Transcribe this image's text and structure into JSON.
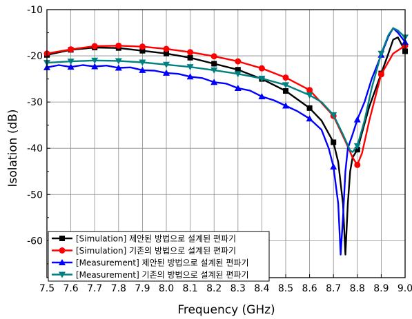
{
  "chart_data": {
    "type": "line",
    "title": "",
    "xlabel": "Frequency (GHz)",
    "ylabel": "Isolation (dB)",
    "xlim": [
      7.5,
      9.0
    ],
    "ylim": [
      -68,
      -10
    ],
    "xticks": [
      "7.5",
      "7.6",
      "7.7",
      "7.8",
      "7.9",
      "8.0",
      "8.1",
      "8.2",
      "8.3",
      "8.4",
      "8.5",
      "8.6",
      "8.7",
      "8.8",
      "8.9",
      "9.0"
    ],
    "yticks": [
      "-10",
      "-20",
      "-30",
      "-40",
      "-50",
      "-60"
    ],
    "grid": true,
    "legend_position": "bottom-left",
    "series": [
      {
        "name": "[Simulation] 제안된 방법으로 설계된 편파기",
        "color": "#000000",
        "marker": "square",
        "x": [
          7.5,
          7.6,
          7.7,
          7.8,
          7.9,
          8.0,
          8.1,
          8.2,
          8.3,
          8.4,
          8.5,
          8.6,
          8.65,
          8.7,
          8.72,
          8.74,
          8.75,
          8.76,
          8.77,
          8.78,
          8.8,
          8.85,
          8.9,
          8.93,
          8.95,
          8.97,
          9.0
        ],
        "y": [
          -19.8,
          -18.7,
          -18.2,
          -18.3,
          -18.9,
          -19.5,
          -20.4,
          -21.7,
          -23.0,
          -25.0,
          -27.6,
          -31.3,
          -34.0,
          -38.7,
          -43.0,
          -52.0,
          -63.0,
          -52.0,
          -45.0,
          -42.0,
          -40.3,
          -31.0,
          -23.8,
          -19.5,
          -16.5,
          -16.0,
          -19.0
        ],
        "marker_x": [
          7.5,
          7.6,
          7.7,
          7.8,
          7.9,
          8.0,
          8.1,
          8.2,
          8.3,
          8.4,
          8.5,
          8.6,
          8.7,
          8.8,
          8.9,
          9.0
        ]
      },
      {
        "name": "[Simulation] 기존의 방법으로 설계된 편파기",
        "color": "#ff0000",
        "marker": "circle",
        "x": [
          7.5,
          7.6,
          7.7,
          7.8,
          7.9,
          8.0,
          8.1,
          8.2,
          8.3,
          8.4,
          8.5,
          8.6,
          8.7,
          8.75,
          8.78,
          8.8,
          8.82,
          8.85,
          8.9,
          8.95,
          9.0
        ],
        "y": [
          -19.5,
          -18.6,
          -17.9,
          -17.8,
          -18.0,
          -18.5,
          -19.2,
          -20.1,
          -21.2,
          -22.7,
          -24.7,
          -27.4,
          -33.0,
          -38.5,
          -42.0,
          -43.6,
          -41.0,
          -34.0,
          -24.0,
          -19.5,
          -17.8
        ],
        "marker_x": [
          7.5,
          7.6,
          7.7,
          7.8,
          7.9,
          8.0,
          8.1,
          8.2,
          8.3,
          8.4,
          8.5,
          8.6,
          8.7,
          8.8,
          8.9,
          9.0
        ]
      },
      {
        "name": "[Measurement] 제안된 방법으로 설계된 편파기",
        "color": "#0000ff",
        "marker": "triangle-up",
        "x": [
          7.5,
          7.55,
          7.6,
          7.65,
          7.7,
          7.75,
          7.8,
          7.85,
          7.9,
          7.95,
          8.0,
          8.05,
          8.1,
          8.15,
          8.2,
          8.25,
          8.3,
          8.35,
          8.4,
          8.45,
          8.5,
          8.55,
          8.6,
          8.65,
          8.68,
          8.7,
          8.72,
          8.73,
          8.74,
          8.75,
          8.76,
          8.78,
          8.8,
          8.83,
          8.86,
          8.9,
          8.93,
          8.95,
          8.97,
          9.0
        ],
        "y": [
          -22.5,
          -22.0,
          -22.4,
          -22.0,
          -22.3,
          -22.1,
          -22.6,
          -22.5,
          -23.1,
          -23.2,
          -23.7,
          -23.9,
          -24.5,
          -24.8,
          -25.7,
          -26.0,
          -27.0,
          -27.5,
          -28.8,
          -29.6,
          -30.8,
          -32.0,
          -33.6,
          -36.0,
          -40.0,
          -44.0,
          -52.0,
          -63.0,
          -55.0,
          -45.0,
          -40.0,
          -37.0,
          -33.8,
          -30.0,
          -25.0,
          -19.8,
          -15.8,
          -14.0,
          -15.0,
          -17.0
        ],
        "marker_x": [
          7.5,
          7.6,
          7.7,
          7.8,
          7.9,
          8.0,
          8.1,
          8.2,
          8.3,
          8.4,
          8.5,
          8.6,
          8.7,
          8.8,
          8.9,
          9.0
        ]
      },
      {
        "name": "[Measurement] 기존의 방법으로 설계된 편파기",
        "color": "#008080",
        "marker": "triangle-down",
        "x": [
          7.5,
          7.6,
          7.7,
          7.8,
          7.9,
          8.0,
          8.1,
          8.2,
          8.3,
          8.4,
          8.5,
          8.6,
          8.65,
          8.7,
          8.74,
          8.77,
          8.78,
          8.8,
          8.83,
          8.86,
          8.9,
          8.93,
          8.95,
          8.97,
          9.0
        ],
        "y": [
          -21.5,
          -21.2,
          -21.0,
          -21.1,
          -21.4,
          -21.9,
          -22.4,
          -23.1,
          -23.9,
          -24.9,
          -26.3,
          -28.5,
          -30.0,
          -32.8,
          -37.0,
          -40.5,
          -40.8,
          -39.5,
          -34.0,
          -27.0,
          -19.5,
          -15.5,
          -14.0,
          -14.5,
          -16.0
        ],
        "marker_x": [
          7.5,
          7.6,
          7.7,
          7.8,
          7.9,
          8.0,
          8.1,
          8.2,
          8.3,
          8.4,
          8.5,
          8.6,
          8.7,
          8.8,
          8.9,
          9.0
        ]
      }
    ]
  }
}
